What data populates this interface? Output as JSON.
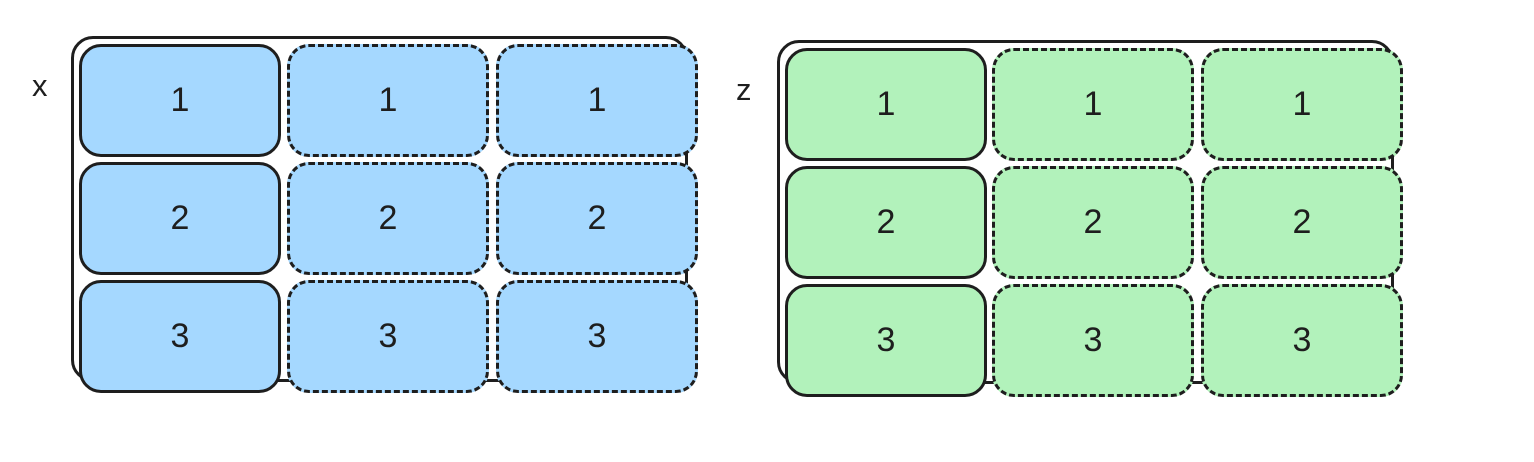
{
  "colors": {
    "x_fill": "#a5d8ff",
    "z_fill": "#b2f2bb",
    "stroke": "#1e1e1e"
  },
  "arrays": [
    {
      "label": "x",
      "rows": [
        [
          "1",
          "1",
          "1"
        ],
        [
          "2",
          "2",
          "2"
        ],
        [
          "3",
          "3",
          "3"
        ]
      ]
    },
    {
      "label": "z",
      "rows": [
        [
          "1",
          "1",
          "1"
        ],
        [
          "2",
          "2",
          "2"
        ],
        [
          "3",
          "3",
          "3"
        ]
      ]
    }
  ]
}
